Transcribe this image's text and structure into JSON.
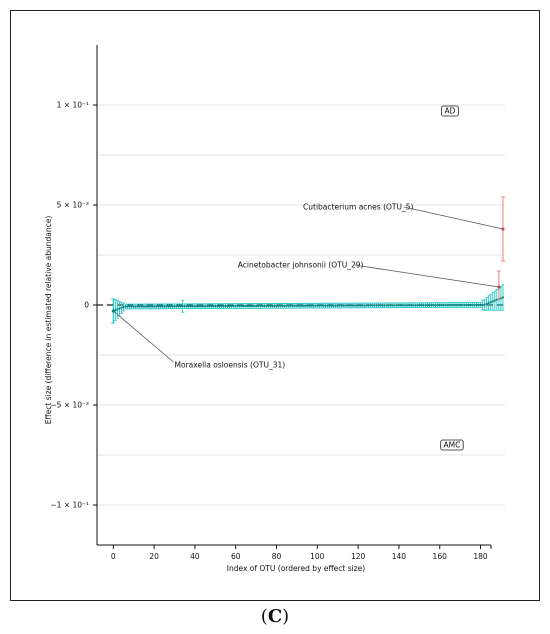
{
  "caption": {
    "open": "(",
    "letter": "C",
    "close": ")"
  },
  "chart_data": {
    "type": "scatter",
    "title": "",
    "xlabel": "Index of OTU (ordered by effect size)",
    "ylabel": "Effect size (difference in estimated relative abundance)",
    "xlim": [
      -8,
      192
    ],
    "ylim": [
      -0.12,
      0.13
    ],
    "xticks": [
      0,
      20,
      40,
      60,
      80,
      100,
      120,
      140,
      160,
      180
    ],
    "xtick_labels": [
      "0",
      "20",
      "40",
      "60",
      "80",
      "100",
      "120",
      "140",
      "160",
      "180"
    ],
    "yticks": [
      0.1,
      0.05,
      0,
      -0.05,
      -0.1
    ],
    "ytick_labels": [
      "1 × 10⁻¹",
      "5 × 10⁻²",
      "0",
      "−5 × 10⁻²",
      "−1 × 10⁻¹"
    ],
    "grid": true,
    "zero_line": true,
    "n_otus": 192,
    "series": [
      {
        "color": "#1fc8c8",
        "values_profile": "near zero for all OTUs, small negative at low indices, small positive at high indices"
      },
      {
        "color": "#f08080",
        "points": [
          [
            191,
            0.038,
            0.022,
            0.054
          ]
        ]
      }
    ],
    "highlighted": [
      {
        "label": "Cutibacterium acnes (OTU_5)",
        "x": 191,
        "y": 0.038,
        "ci": [
          0.022,
          0.054
        ]
      },
      {
        "label": "Acinetobacter johnsonii (OTU_29)",
        "x": 189,
        "y": 0.009,
        "ci": [
          0.003,
          0.017
        ]
      },
      {
        "label": "Moraxella osloensis (OTU_31)",
        "x": 0,
        "y": -0.003,
        "ci": [
          -0.009,
          0.003
        ]
      }
    ],
    "region_labels": [
      {
        "text": "AD",
        "x": 165,
        "y": 0.097
      },
      {
        "text": "AMC",
        "x": 166,
        "y": -0.07
      }
    ]
  }
}
